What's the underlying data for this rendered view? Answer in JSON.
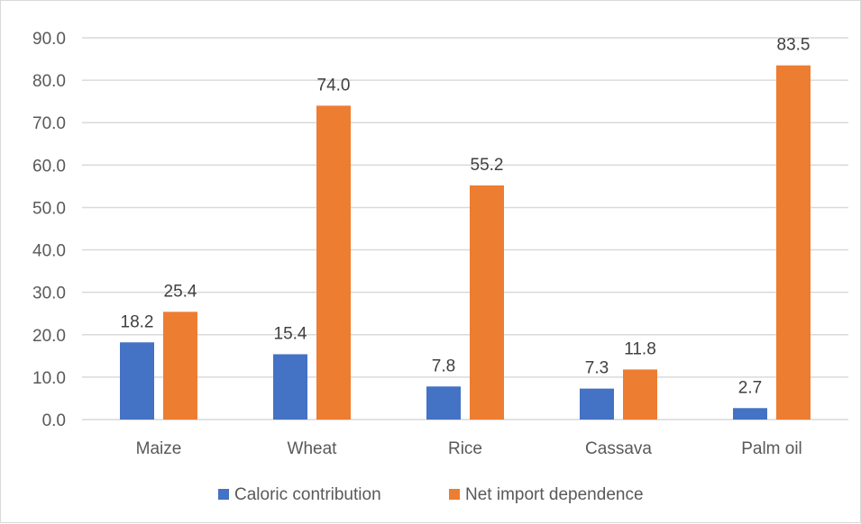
{
  "chart_data": {
    "type": "bar",
    "title": "",
    "xlabel": "",
    "ylabel": "",
    "categories": [
      "Maize",
      "Wheat",
      "Rice",
      "Cassava",
      "Palm oil"
    ],
    "series": [
      {
        "name": "Caloric contribution",
        "values": [
          18.2,
          15.4,
          7.8,
          7.3,
          2.7
        ],
        "labels": [
          "18.2",
          "15.4",
          "7.8",
          "7.3",
          "2.7"
        ],
        "color": "#4472c4"
      },
      {
        "name": "Net import dependence",
        "values": [
          25.4,
          74.0,
          55.2,
          11.8,
          83.5
        ],
        "labels": [
          "25.4",
          "74.0",
          "55.2",
          "11.8",
          "83.5"
        ],
        "color": "#ed7d31"
      }
    ],
    "ylim": [
      0,
      90
    ],
    "yticks": [
      "0.0",
      "10.0",
      "20.0",
      "30.0",
      "40.0",
      "50.0",
      "60.0",
      "70.0",
      "80.0",
      "90.0"
    ],
    "grid": true,
    "legend": "bottom",
    "gridline_color": "#d9d9d9"
  }
}
